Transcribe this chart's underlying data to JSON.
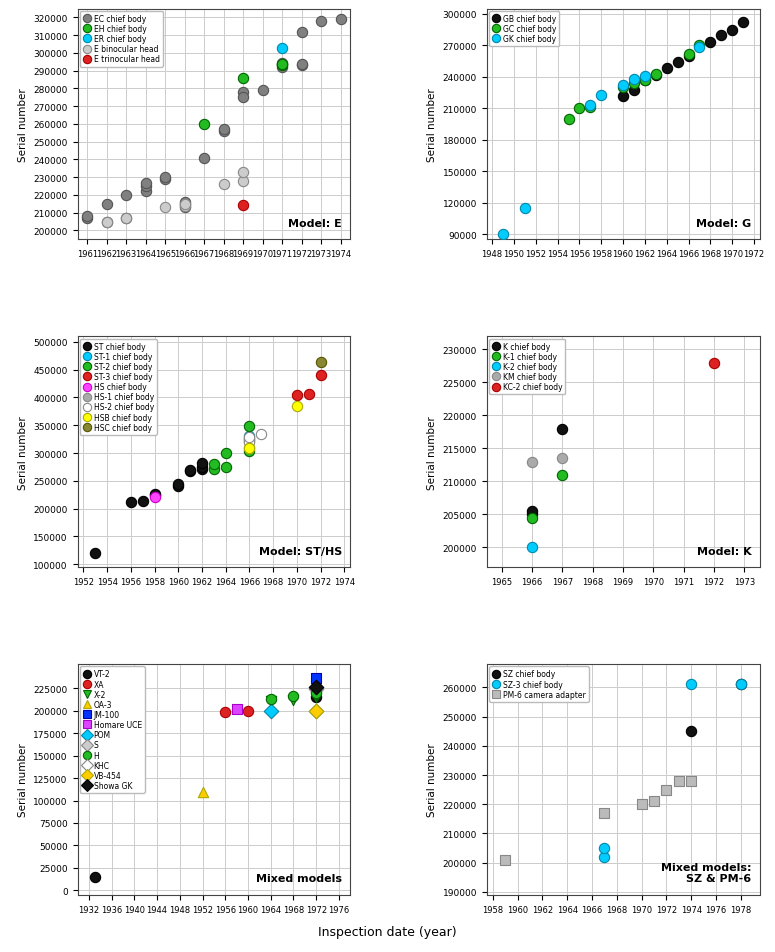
{
  "panel_E": {
    "title": "Model: E",
    "xlim": [
      1960.5,
      1974.5
    ],
    "ylim": [
      195000,
      325000
    ],
    "xticks": [
      1961,
      1962,
      1963,
      1964,
      1965,
      1966,
      1967,
      1968,
      1969,
      1970,
      1971,
      1972,
      1973,
      1974
    ],
    "yticks": [
      200000,
      210000,
      220000,
      230000,
      240000,
      250000,
      260000,
      270000,
      280000,
      290000,
      300000,
      310000,
      320000
    ],
    "series": [
      {
        "label": "EC chief body",
        "color": "#808080",
        "edgecolor": "#555555",
        "marker": "o",
        "data": [
          [
            1961,
            207000
          ],
          [
            1961,
            208000
          ],
          [
            1962,
            215000
          ],
          [
            1962,
            205000
          ],
          [
            1963,
            207000
          ],
          [
            1963,
            220000
          ],
          [
            1964,
            222000
          ],
          [
            1964,
            225000
          ],
          [
            1964,
            227000
          ],
          [
            1965,
            229000
          ],
          [
            1965,
            230000
          ],
          [
            1966,
            213000
          ],
          [
            1966,
            215000
          ],
          [
            1966,
            216000
          ],
          [
            1967,
            241000
          ],
          [
            1968,
            256000
          ],
          [
            1968,
            257000
          ],
          [
            1969,
            278000
          ],
          [
            1969,
            275000
          ],
          [
            1970,
            279000
          ],
          [
            1971,
            292000
          ],
          [
            1971,
            294000
          ],
          [
            1971,
            294500
          ],
          [
            1972,
            293000
          ],
          [
            1972,
            293500
          ],
          [
            1972,
            312000
          ],
          [
            1973,
            318000
          ],
          [
            1974,
            319000
          ]
        ]
      },
      {
        "label": "EH chief body",
        "color": "#22bb22",
        "edgecolor": "#006600",
        "marker": "o",
        "data": [
          [
            1967,
            260000
          ],
          [
            1969,
            286000
          ],
          [
            1971,
            293000
          ],
          [
            1971,
            294000
          ]
        ]
      },
      {
        "label": "ER chief body",
        "color": "#00ccff",
        "edgecolor": "#0088aa",
        "marker": "o",
        "data": [
          [
            1971,
            303000
          ]
        ]
      },
      {
        "label": "E binocular head",
        "color": "#cccccc",
        "edgecolor": "#888888",
        "marker": "o",
        "data": [
          [
            1962,
            205000
          ],
          [
            1963,
            207000
          ],
          [
            1965,
            213000
          ],
          [
            1966,
            214000
          ],
          [
            1966,
            215000
          ],
          [
            1968,
            226000
          ],
          [
            1969,
            228000
          ],
          [
            1969,
            233000
          ]
        ]
      },
      {
        "label": "E trinocular head",
        "color": "#dd2222",
        "edgecolor": "#aa0000",
        "marker": "o",
        "data": [
          [
            1969,
            214500
          ]
        ]
      }
    ]
  },
  "panel_G": {
    "title": "Model: G",
    "xlim": [
      1947.5,
      1972.5
    ],
    "ylim": [
      85000,
      305000
    ],
    "xticks": [
      1948,
      1950,
      1952,
      1954,
      1956,
      1958,
      1960,
      1962,
      1964,
      1966,
      1968,
      1970,
      1972
    ],
    "yticks": [
      90000,
      120000,
      150000,
      180000,
      210000,
      240000,
      270000,
      300000
    ],
    "series": [
      {
        "label": "GB chief body",
        "color": "#111111",
        "edgecolor": "#000000",
        "marker": "o",
        "data": [
          [
            1960,
            222000
          ],
          [
            1961,
            227000
          ],
          [
            1962,
            237000
          ],
          [
            1963,
            242000
          ],
          [
            1964,
            248000
          ],
          [
            1965,
            254000
          ],
          [
            1966,
            260000
          ],
          [
            1968,
            273000
          ],
          [
            1969,
            280000
          ],
          [
            1970,
            285000
          ],
          [
            1971,
            292000
          ]
        ]
      },
      {
        "label": "GC chief body",
        "color": "#22bb22",
        "edgecolor": "#006600",
        "marker": "o",
        "data": [
          [
            1955,
            200000
          ],
          [
            1956,
            210000
          ],
          [
            1957,
            211000
          ],
          [
            1960,
            230000
          ],
          [
            1961,
            234000
          ],
          [
            1962,
            237000
          ],
          [
            1963,
            243000
          ],
          [
            1966,
            262000
          ],
          [
            1967,
            270000
          ]
        ]
      },
      {
        "label": "GK chief body",
        "color": "#00ccff",
        "edgecolor": "#0088aa",
        "marker": "o",
        "data": [
          [
            1949,
            90000
          ],
          [
            1951,
            115000
          ],
          [
            1957,
            213000
          ],
          [
            1958,
            223000
          ],
          [
            1960,
            232000
          ],
          [
            1961,
            238000
          ],
          [
            1962,
            241000
          ],
          [
            1967,
            268000
          ]
        ]
      }
    ]
  },
  "panel_ST": {
    "title": "Model: ST/HS",
    "xlim": [
      1951.5,
      1974.5
    ],
    "ylim": [
      95000,
      510000
    ],
    "xticks": [
      1952,
      1954,
      1956,
      1958,
      1960,
      1962,
      1964,
      1966,
      1968,
      1970,
      1972,
      1974
    ],
    "yticks": [
      100000,
      150000,
      200000,
      250000,
      300000,
      350000,
      400000,
      450000,
      500000
    ],
    "series": [
      {
        "label": "ST chief body",
        "color": "#111111",
        "edgecolor": "#000000",
        "marker": "o",
        "data": [
          [
            1953,
            120000
          ],
          [
            1956,
            212000
          ],
          [
            1957,
            214000
          ],
          [
            1958,
            225000
          ],
          [
            1958,
            227000
          ],
          [
            1960,
            240000
          ],
          [
            1960,
            244000
          ],
          [
            1961,
            267000
          ],
          [
            1961,
            270000
          ],
          [
            1962,
            272000
          ],
          [
            1962,
            275000
          ],
          [
            1962,
            282000
          ]
        ]
      },
      {
        "label": "ST-1 chief body",
        "color": "#00ccff",
        "edgecolor": "#0088aa",
        "marker": "o",
        "data": [
          [
            1966,
            326000
          ],
          [
            1966,
            330000
          ]
        ]
      },
      {
        "label": "ST-2 chief body",
        "color": "#22bb22",
        "edgecolor": "#006600",
        "marker": "o",
        "data": [
          [
            1963,
            272000
          ],
          [
            1963,
            280000
          ],
          [
            1964,
            275000
          ],
          [
            1964,
            300000
          ],
          [
            1966,
            303000
          ],
          [
            1966,
            348000
          ]
        ]
      },
      {
        "label": "ST-3 chief body",
        "color": "#dd2222",
        "edgecolor": "#aa0000",
        "marker": "o",
        "data": [
          [
            1970,
            405000
          ],
          [
            1971,
            407000
          ],
          [
            1972,
            440000
          ]
        ]
      },
      {
        "label": "HS chief body",
        "color": "#ff44ff",
        "edgecolor": "#cc00cc",
        "marker": "o",
        "data": [
          [
            1958,
            221000
          ]
        ]
      },
      {
        "label": "HS-1 chief body",
        "color": "#aaaaaa",
        "edgecolor": "#888888",
        "marker": "o",
        "data": [
          [
            1966,
            322000
          ],
          [
            1966,
            325000
          ]
        ]
      },
      {
        "label": "HS-2 chief body",
        "color": "#ffffff",
        "edgecolor": "#888888",
        "marker": "o",
        "data": [
          [
            1966,
            319000
          ],
          [
            1966,
            328000
          ],
          [
            1967,
            334000
          ]
        ]
      },
      {
        "label": "HSB chief body",
        "color": "#ffff00",
        "edgecolor": "#aaaa00",
        "marker": "o",
        "data": [
          [
            1966,
            309000
          ],
          [
            1966,
            310000
          ],
          [
            1970,
            385000
          ]
        ]
      },
      {
        "label": "HSC chief body",
        "color": "#888833",
        "edgecolor": "#555500",
        "marker": "o",
        "data": [
          [
            1972,
            463000
          ]
        ]
      }
    ]
  },
  "panel_K": {
    "title": "Model: K",
    "xlim": [
      1964.5,
      1973.5
    ],
    "ylim": [
      197000,
      232000
    ],
    "xticks": [
      1965,
      1966,
      1967,
      1968,
      1969,
      1970,
      1971,
      1972,
      1973
    ],
    "yticks": [
      200000,
      205000,
      210000,
      215000,
      220000,
      225000,
      230000
    ],
    "series": [
      {
        "label": "K chief body",
        "color": "#111111",
        "edgecolor": "#000000",
        "marker": "o",
        "data": [
          [
            1966,
            205000
          ],
          [
            1966,
            205500
          ],
          [
            1967,
            218000
          ]
        ]
      },
      {
        "label": "K-1 chief body",
        "color": "#22bb22",
        "edgecolor": "#006600",
        "marker": "o",
        "data": [
          [
            1966,
            204500
          ],
          [
            1967,
            211000
          ]
        ]
      },
      {
        "label": "K-2 chief body",
        "color": "#00ccff",
        "edgecolor": "#0088aa",
        "marker": "o",
        "data": [
          [
            1966,
            200000
          ]
        ]
      },
      {
        "label": "KM chief body",
        "color": "#aaaaaa",
        "edgecolor": "#888888",
        "marker": "o",
        "data": [
          [
            1966,
            213000
          ],
          [
            1967,
            213500
          ]
        ]
      },
      {
        "label": "KC-2 chief body",
        "color": "#dd2222",
        "edgecolor": "#aa0000",
        "marker": "o",
        "data": [
          [
            1972,
            228000
          ]
        ]
      }
    ]
  },
  "panel_mixed": {
    "title": "Mixed models",
    "xlim": [
      1930,
      1978
    ],
    "ylim": [
      -5000,
      252000
    ],
    "xticks": [
      1932,
      1936,
      1940,
      1944,
      1948,
      1952,
      1956,
      1960,
      1964,
      1968,
      1972,
      1976
    ],
    "yticks": [
      0,
      25000,
      50000,
      75000,
      100000,
      125000,
      150000,
      175000,
      200000,
      225000
    ],
    "series": [
      {
        "label": "VT-2",
        "color": "#111111",
        "edgecolor": "#000000",
        "marker": "o",
        "data": [
          [
            1933,
            15000
          ],
          [
            1972,
            215000
          ],
          [
            1972,
            226000
          ]
        ]
      },
      {
        "label": "XA",
        "color": "#dd2222",
        "edgecolor": "#aa0000",
        "marker": "o",
        "data": [
          [
            1956,
            199000
          ],
          [
            1960,
            200000
          ]
        ]
      },
      {
        "label": "X-2",
        "color": "#22bb22",
        "edgecolor": "#006600",
        "marker": "v",
        "data": [
          [
            1964,
            211000
          ],
          [
            1968,
            212000
          ],
          [
            1972,
            215000
          ],
          [
            1972,
            218000
          ]
        ]
      },
      {
        "label": "OA-3",
        "color": "#ffcc00",
        "edgecolor": "#aaaa00",
        "marker": "^",
        "data": [
          [
            1952,
            110000
          ]
        ]
      },
      {
        "label": "JM-100",
        "color": "#0033ff",
        "edgecolor": "#0000aa",
        "marker": "s",
        "data": [
          [
            1972,
            236000
          ]
        ]
      },
      {
        "label": "Homare UCE",
        "color": "#dd44ff",
        "edgecolor": "#aa00cc",
        "marker": "s",
        "data": [
          [
            1958,
            202000
          ]
        ]
      },
      {
        "label": "POM",
        "color": "#00ccff",
        "edgecolor": "#0088aa",
        "marker": "D",
        "data": [
          [
            1964,
            200000
          ]
        ]
      },
      {
        "label": "S",
        "color": "#cccccc",
        "edgecolor": "#888888",
        "marker": "D",
        "data": [
          [
            1972,
            224000
          ]
        ]
      },
      {
        "label": "H",
        "color": "#22bb22",
        "edgecolor": "#006600",
        "marker": "o",
        "data": [
          [
            1964,
            213000
          ],
          [
            1968,
            216000
          ],
          [
            1972,
            220000
          ]
        ]
      },
      {
        "label": "KHC",
        "color": "#ffffff",
        "edgecolor": "#888888",
        "marker": "D",
        "data": [
          [
            1972,
            200000
          ]
        ]
      },
      {
        "label": "VB-454",
        "color": "#ffcc00",
        "edgecolor": "#aaaa00",
        "marker": "D",
        "data": [
          [
            1972,
            200000
          ]
        ]
      },
      {
        "label": "Showa GK",
        "color": "#111111",
        "edgecolor": "#000000",
        "marker": "D",
        "data": [
          [
            1972,
            226000
          ]
        ]
      }
    ]
  },
  "panel_SZ": {
    "title": "Mixed models:\nSZ & PM-6",
    "xlim": [
      1957.5,
      1979.5
    ],
    "ylim": [
      189000,
      268000
    ],
    "xticks": [
      1958,
      1960,
      1962,
      1964,
      1966,
      1968,
      1970,
      1972,
      1974,
      1976,
      1978
    ],
    "yticks": [
      190000,
      200000,
      210000,
      220000,
      230000,
      240000,
      250000,
      260000
    ],
    "series": [
      {
        "label": "SZ chief body",
        "color": "#111111",
        "edgecolor": "#000000",
        "marker": "o",
        "data": [
          [
            1974,
            245000
          ],
          [
            1978,
            261000
          ]
        ]
      },
      {
        "label": "SZ-3 chief body",
        "color": "#00ccff",
        "edgecolor": "#0088aa",
        "marker": "o",
        "data": [
          [
            1967,
            202000
          ],
          [
            1967,
            205000
          ],
          [
            1974,
            261000
          ],
          [
            1978,
            261000
          ]
        ]
      },
      {
        "label": "PM-6 camera adapter",
        "color": "#bbbbbb",
        "edgecolor": "#888888",
        "marker": "s",
        "data": [
          [
            1959,
            201000
          ],
          [
            1967,
            217000
          ],
          [
            1970,
            220000
          ],
          [
            1971,
            221000
          ],
          [
            1972,
            225000
          ],
          [
            1973,
            228000
          ],
          [
            1974,
            228000
          ]
        ]
      }
    ]
  },
  "ylabel": "Serial number",
  "xlabel": "Inspection date (year)",
  "bg_color": "#ffffff",
  "grid_color": "#cccccc",
  "marker_size": 55
}
